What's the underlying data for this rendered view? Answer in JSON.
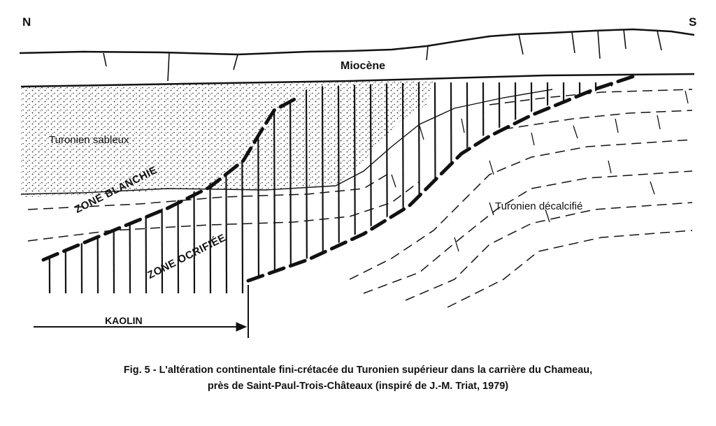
{
  "compass": {
    "north": "N",
    "south": "S"
  },
  "units": {
    "miocene": "Miocène",
    "turonien_sableux": "Turonien sableux",
    "turonien_decalcifie": "Turonien décalcifié"
  },
  "zones": {
    "blanchie": "ZONE BLANCHIE",
    "ocrifiee": "ZONE OCRIFIÉE"
  },
  "kaolin": "KAOLIN",
  "caption": {
    "line1": "Fig. 5 - L'altération continentale fini-crétacée du Turonien supérieur dans la carrière du Chameau,",
    "line2": "près de Saint-Paul-Trois-Châteaux (inspiré de J.-M. Triat, 1979)"
  },
  "colors": {
    "ink": "#111111",
    "background": "#ffffff"
  }
}
